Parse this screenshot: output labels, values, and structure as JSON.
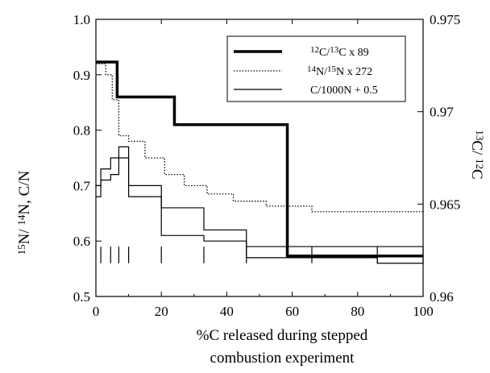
{
  "chart_data": {
    "type": "line",
    "step": true,
    "xlabel_line1": "%C released during stepped",
    "xlabel_line2": "combustion experiment",
    "ylabel_left": {
      "n15": "15",
      "sl1": "N/ ",
      "n14": "14",
      "rest": "N,  C/N"
    },
    "ylabel_right": {
      "c13": "13",
      "sl": "C/ ",
      "c12": "12",
      "c": "C"
    },
    "xlim": [
      0,
      100
    ],
    "ylim_left": [
      0.5,
      1.0
    ],
    "ylim_right": [
      0.96,
      0.975
    ],
    "x_ticks": [
      "0",
      "20",
      "40",
      "60",
      "80",
      "100"
    ],
    "y_left_ticks": [
      "0.5",
      "0.6",
      "0.7",
      "0.8",
      "0.9",
      "1.0"
    ],
    "y_right_ticks": [
      "0.96",
      "0.965",
      "0.97",
      "0.975"
    ],
    "grid": false,
    "legend_position": "top-right",
    "legend": [
      {
        "sup": "12",
        "mid": "C/",
        "sup2": "13",
        "tail": "C x 89"
      },
      {
        "sup": "14",
        "mid": "N/",
        "sup2": "15",
        "tail": "N  x 272"
      },
      {
        "text": "C/1000N + 0.5"
      }
    ],
    "series": [
      {
        "name": "12C/13C x 89",
        "style": "thick",
        "color": "#000000",
        "x": [
          0,
          6.5,
          24,
          58.5,
          100
        ],
        "y": [
          0.923,
          0.86,
          0.81,
          0.573,
          0.573
        ]
      },
      {
        "name": "14N/15N x 272",
        "style": "dotted",
        "color": "#000000",
        "x": [
          0,
          3,
          5,
          7,
          10,
          15,
          21,
          27,
          34,
          42,
          52,
          66,
          100
        ],
        "y": [
          0.92,
          0.9,
          0.855,
          0.79,
          0.78,
          0.75,
          0.72,
          0.7,
          0.685,
          0.672,
          0.663,
          0.653,
          0.653
        ]
      },
      {
        "name": "C/1000N + 0.5",
        "style": "thin-high",
        "color": "#000000",
        "x": [
          0,
          1.5,
          4.5,
          10,
          20,
          33,
          46,
          66,
          86,
          100
        ],
        "y": [
          0.7,
          0.73,
          0.75,
          0.7,
          0.66,
          0.62,
          0.59,
          0.59,
          0.59,
          0.59
        ]
      },
      {
        "name": "C/1000N + 0.5",
        "style": "thin-low",
        "color": "#000000",
        "x": [
          0,
          1.5,
          4.5,
          7,
          10,
          20,
          33,
          46,
          66,
          86,
          100
        ],
        "y": [
          0.68,
          0.71,
          0.72,
          0.77,
          0.68,
          0.61,
          0.6,
          0.57,
          0.57,
          0.56,
          0.56
        ]
      }
    ]
  }
}
